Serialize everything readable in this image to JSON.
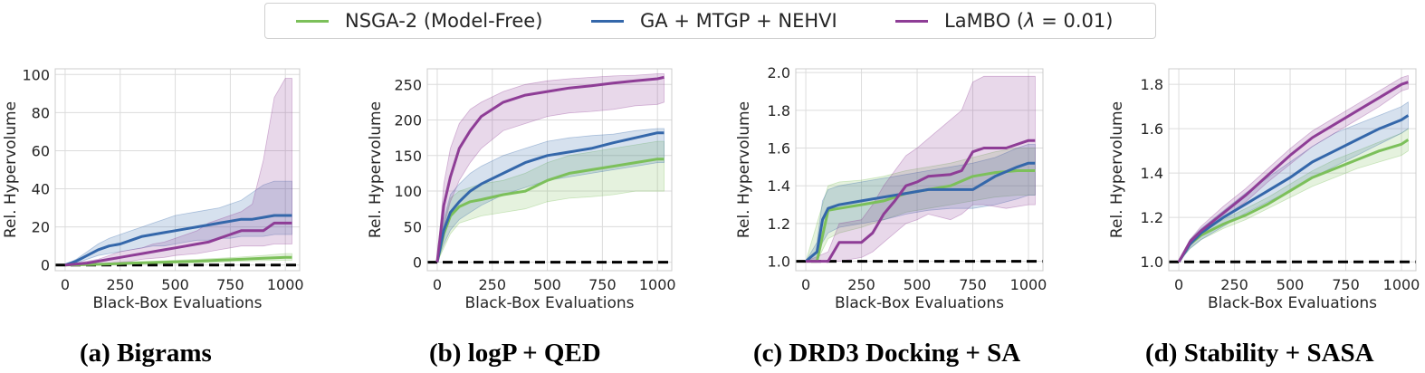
{
  "legend": [
    {
      "label": "NSGA-2 (Model-Free)",
      "color": "#7cc05a"
    },
    {
      "label": "GA + MTGP + NEHVI",
      "color": "#3467aa"
    },
    {
      "label_prefix": "LaMBO (",
      "label_symbol": "λ",
      "label_suffix": " = 0.01)",
      "color": "#8e3d96"
    }
  ],
  "captions": [
    "(a) Bigrams",
    "(b) logP + QED",
    "(c) DRD3 Docking + SA",
    "(d) Stability + SASA"
  ],
  "chart_data": [
    {
      "type": "line",
      "xlabel": "Black-Box Evaluations",
      "ylabel": "Rel. Hypervolume",
      "xlim": [
        -45,
        1065
      ],
      "ylim": [
        -3,
        103
      ],
      "xticks": [
        0,
        250,
        500,
        750,
        1000
      ],
      "yticks": [
        0,
        20,
        40,
        60,
        80,
        100
      ],
      "ytick_labels": [
        "0",
        "20",
        "40",
        "60",
        "80",
        "100"
      ],
      "baseline": 0,
      "grid": true,
      "series": [
        {
          "name": "NSGA-2 (Model-Free)",
          "color": "#7cc05a",
          "x": [
            0,
            100,
            200,
            300,
            400,
            500,
            600,
            700,
            800,
            900,
            1000,
            1030
          ],
          "y": [
            0,
            0.2,
            0.5,
            1,
            1.3,
            1.6,
            2,
            2.5,
            3,
            3.5,
            4,
            4
          ],
          "lower": [
            0,
            0,
            0.2,
            0.5,
            0.8,
            1,
            1.2,
            1.5,
            2,
            2.3,
            2.5,
            2.5
          ],
          "upper": [
            0,
            0.5,
            1,
            1.6,
            2,
            2.5,
            3,
            3.5,
            4.2,
            5,
            6,
            6
          ]
        },
        {
          "name": "GA + MTGP + NEHVI",
          "color": "#3467aa",
          "x": [
            0,
            50,
            100,
            150,
            200,
            250,
            300,
            350,
            400,
            450,
            500,
            550,
            600,
            650,
            700,
            750,
            800,
            850,
            900,
            950,
            1000,
            1030
          ],
          "y": [
            0,
            2,
            5,
            8,
            10,
            11,
            13,
            15,
            16,
            17,
            18,
            19,
            20,
            21,
            22,
            23,
            24,
            24,
            25,
            26,
            26,
            26
          ],
          "lower": [
            0,
            1,
            3,
            5,
            6,
            7,
            8,
            9,
            10,
            10,
            11,
            12,
            13,
            13,
            14,
            14,
            15,
            15,
            15,
            16,
            16,
            16
          ],
          "upper": [
            0,
            3,
            7,
            11,
            14,
            16,
            18,
            20,
            22,
            24,
            26,
            27,
            28,
            29,
            30,
            32,
            34,
            38,
            42,
            44,
            44,
            44
          ]
        },
        {
          "name": "LaMBO (λ = 0.01)",
          "color": "#8e3d96",
          "x": [
            0,
            100,
            150,
            200,
            250,
            300,
            350,
            400,
            450,
            500,
            550,
            600,
            650,
            700,
            750,
            800,
            850,
            900,
            950,
            1000,
            1030
          ],
          "y": [
            0,
            1,
            2,
            3,
            4,
            5,
            6,
            7,
            8,
            9,
            10,
            11,
            12,
            14,
            16,
            18,
            18,
            18,
            22,
            22,
            22
          ],
          "lower": [
            0,
            0,
            0.5,
            1,
            1.5,
            2,
            3,
            3.5,
            4,
            5,
            5.5,
            6,
            7,
            8,
            9,
            10,
            10,
            10,
            11,
            11,
            11
          ],
          "upper": [
            0,
            2,
            3,
            5,
            7,
            8,
            9,
            11,
            12,
            14,
            16,
            18,
            22,
            24,
            26,
            28,
            32,
            55,
            88,
            98,
            98
          ]
        }
      ]
    },
    {
      "type": "line",
      "xlabel": "Black-Box Evaluations",
      "ylabel": "Rel. Hypervolume",
      "xlim": [
        -45,
        1065
      ],
      "ylim": [
        -12,
        272
      ],
      "xticks": [
        0,
        250,
        500,
        750,
        1000
      ],
      "yticks": [
        0,
        50,
        100,
        150,
        200,
        250
      ],
      "ytick_labels": [
        "0",
        "50",
        "100",
        "150",
        "200",
        "250"
      ],
      "baseline": 0,
      "grid": true,
      "series": [
        {
          "name": "NSGA-2 (Model-Free)",
          "color": "#7cc05a",
          "x": [
            0,
            30,
            60,
            100,
            150,
            200,
            300,
            400,
            500,
            600,
            700,
            800,
            900,
            1000,
            1030
          ],
          "y": [
            0,
            40,
            65,
            78,
            85,
            88,
            95,
            100,
            115,
            125,
            130,
            135,
            140,
            145,
            145
          ],
          "lower": [
            0,
            20,
            40,
            55,
            60,
            65,
            70,
            75,
            85,
            90,
            92,
            95,
            100,
            100,
            100
          ],
          "upper": [
            0,
            55,
            90,
            100,
            105,
            110,
            115,
            125,
            140,
            150,
            155,
            160,
            165,
            170,
            170
          ]
        },
        {
          "name": "GA + MTGP + NEHVI",
          "color": "#3467aa",
          "x": [
            0,
            30,
            60,
            100,
            150,
            200,
            300,
            400,
            500,
            600,
            700,
            800,
            900,
            1000,
            1030
          ],
          "y": [
            0,
            45,
            70,
            85,
            100,
            110,
            125,
            140,
            150,
            155,
            160,
            168,
            175,
            182,
            182
          ],
          "lower": [
            0,
            25,
            45,
            60,
            70,
            80,
            95,
            105,
            115,
            120,
            125,
            130,
            135,
            140,
            140
          ],
          "upper": [
            0,
            60,
            95,
            110,
            125,
            135,
            150,
            160,
            170,
            175,
            178,
            180,
            185,
            188,
            188
          ]
        },
        {
          "name": "LaMBO (λ = 0.01)",
          "color": "#8e3d96",
          "x": [
            0,
            30,
            60,
            100,
            150,
            200,
            300,
            400,
            500,
            600,
            700,
            800,
            900,
            1000,
            1030
          ],
          "y": [
            0,
            80,
            120,
            160,
            185,
            205,
            225,
            235,
            240,
            245,
            248,
            252,
            255,
            258,
            260
          ],
          "lower": [
            0,
            50,
            85,
            115,
            140,
            160,
            185,
            195,
            205,
            210,
            212,
            215,
            220,
            222,
            225
          ],
          "upper": [
            0,
            110,
            160,
            195,
            215,
            225,
            240,
            250,
            255,
            258,
            260,
            262,
            263,
            265,
            265
          ]
        }
      ]
    },
    {
      "type": "line",
      "xlabel": "Black-Box Evaluations",
      "ylabel": "Rel. Hypervolume",
      "xlim": [
        -45,
        1065
      ],
      "ylim": [
        0.95,
        2.02
      ],
      "xticks": [
        0,
        250,
        500,
        750,
        1000
      ],
      "yticks": [
        1.0,
        1.2,
        1.4,
        1.6,
        1.8,
        2.0
      ],
      "ytick_labels": [
        "1.0",
        "1.2",
        "1.4",
        "1.6",
        "1.8",
        "2.0"
      ],
      "baseline": 1.0,
      "grid": true,
      "series": [
        {
          "name": "NSGA-2 (Model-Free)",
          "color": "#7cc05a",
          "x": [
            0,
            50,
            100,
            150,
            250,
            350,
            450,
            550,
            650,
            750,
            850,
            950,
            1000,
            1030
          ],
          "y": [
            1.0,
            1.0,
            1.27,
            1.28,
            1.3,
            1.32,
            1.36,
            1.38,
            1.4,
            1.45,
            1.47,
            1.48,
            1.48,
            1.48
          ],
          "lower": [
            1.0,
            1.0,
            1.12,
            1.15,
            1.18,
            1.22,
            1.26,
            1.28,
            1.3,
            1.32,
            1.34,
            1.35,
            1.35,
            1.35
          ],
          "upper": [
            1.0,
            1.2,
            1.4,
            1.42,
            1.43,
            1.45,
            1.48,
            1.5,
            1.52,
            1.55,
            1.58,
            1.6,
            1.6,
            1.6
          ]
        },
        {
          "name": "GA + MTGP + NEHVI",
          "color": "#3467aa",
          "x": [
            0,
            50,
            75,
            100,
            150,
            250,
            350,
            450,
            550,
            650,
            750,
            850,
            950,
            1000,
            1030
          ],
          "y": [
            1.0,
            1.05,
            1.22,
            1.28,
            1.3,
            1.32,
            1.34,
            1.36,
            1.38,
            1.38,
            1.38,
            1.45,
            1.5,
            1.52,
            1.52
          ],
          "lower": [
            1.0,
            1.0,
            1.1,
            1.15,
            1.18,
            1.2,
            1.22,
            1.25,
            1.27,
            1.28,
            1.28,
            1.3,
            1.33,
            1.35,
            1.35
          ],
          "upper": [
            1.0,
            1.1,
            1.32,
            1.38,
            1.4,
            1.42,
            1.44,
            1.46,
            1.48,
            1.5,
            1.52,
            1.55,
            1.6,
            1.62,
            1.62
          ]
        },
        {
          "name": "LaMBO (λ = 0.01)",
          "color": "#8e3d96",
          "x": [
            0,
            100,
            150,
            250,
            300,
            350,
            400,
            450,
            500,
            550,
            650,
            700,
            750,
            800,
            900,
            1000,
            1030
          ],
          "y": [
            1.0,
            1.0,
            1.1,
            1.1,
            1.15,
            1.25,
            1.32,
            1.4,
            1.42,
            1.45,
            1.46,
            1.48,
            1.58,
            1.6,
            1.6,
            1.64,
            1.64
          ],
          "lower": [
            1.0,
            1.0,
            1.0,
            1.02,
            1.05,
            1.1,
            1.15,
            1.2,
            1.22,
            1.25,
            1.22,
            1.25,
            1.3,
            1.3,
            1.28,
            1.3,
            1.3
          ],
          "upper": [
            1.0,
            1.05,
            1.2,
            1.22,
            1.3,
            1.4,
            1.48,
            1.56,
            1.6,
            1.65,
            1.75,
            1.8,
            1.95,
            1.98,
            1.98,
            1.98,
            1.98
          ]
        }
      ]
    },
    {
      "type": "line",
      "xlabel": "Black-Box Evaluations",
      "ylabel": "Rel. Hypervolume",
      "xlim": [
        -45,
        1065
      ],
      "ylim": [
        0.96,
        1.87
      ],
      "xticks": [
        0,
        250,
        500,
        750,
        1000
      ],
      "yticks": [
        1.0,
        1.2,
        1.4,
        1.6,
        1.8
      ],
      "ytick_labels": [
        "1.0",
        "1.2",
        "1.4",
        "1.6",
        "1.8"
      ],
      "baseline": 1.0,
      "grid": true,
      "series": [
        {
          "name": "NSGA-2 (Model-Free)",
          "color": "#7cc05a",
          "x": [
            0,
            50,
            100,
            200,
            300,
            400,
            500,
            600,
            700,
            800,
            900,
            1000,
            1030
          ],
          "y": [
            1.0,
            1.08,
            1.12,
            1.17,
            1.21,
            1.26,
            1.32,
            1.38,
            1.42,
            1.46,
            1.5,
            1.53,
            1.55
          ],
          "lower": [
            1.0,
            1.06,
            1.1,
            1.15,
            1.19,
            1.24,
            1.29,
            1.34,
            1.38,
            1.42,
            1.45,
            1.48,
            1.5
          ],
          "upper": [
            1.0,
            1.1,
            1.14,
            1.19,
            1.24,
            1.29,
            1.35,
            1.41,
            1.46,
            1.5,
            1.54,
            1.58,
            1.6
          ]
        },
        {
          "name": "GA + MTGP + NEHVI",
          "color": "#3467aa",
          "x": [
            0,
            50,
            100,
            200,
            300,
            400,
            500,
            600,
            700,
            800,
            900,
            1000,
            1030
          ],
          "y": [
            1.0,
            1.08,
            1.13,
            1.2,
            1.26,
            1.32,
            1.38,
            1.45,
            1.5,
            1.55,
            1.6,
            1.64,
            1.66
          ],
          "lower": [
            1.0,
            1.06,
            1.1,
            1.16,
            1.22,
            1.27,
            1.32,
            1.38,
            1.43,
            1.48,
            1.53,
            1.58,
            1.6
          ],
          "upper": [
            1.0,
            1.1,
            1.15,
            1.23,
            1.31,
            1.38,
            1.45,
            1.52,
            1.58,
            1.62,
            1.66,
            1.7,
            1.72
          ]
        },
        {
          "name": "LaMBO (λ = 0.01)",
          "color": "#8e3d96",
          "x": [
            0,
            50,
            100,
            200,
            300,
            400,
            500,
            600,
            700,
            800,
            900,
            1000,
            1030
          ],
          "y": [
            1.0,
            1.09,
            1.14,
            1.22,
            1.3,
            1.39,
            1.48,
            1.56,
            1.62,
            1.68,
            1.74,
            1.8,
            1.81
          ],
          "lower": [
            1.0,
            1.07,
            1.12,
            1.2,
            1.27,
            1.36,
            1.44,
            1.52,
            1.58,
            1.64,
            1.7,
            1.77,
            1.78
          ],
          "upper": [
            1.0,
            1.1,
            1.16,
            1.25,
            1.33,
            1.42,
            1.51,
            1.59,
            1.65,
            1.71,
            1.77,
            1.83,
            1.84
          ]
        }
      ]
    }
  ]
}
